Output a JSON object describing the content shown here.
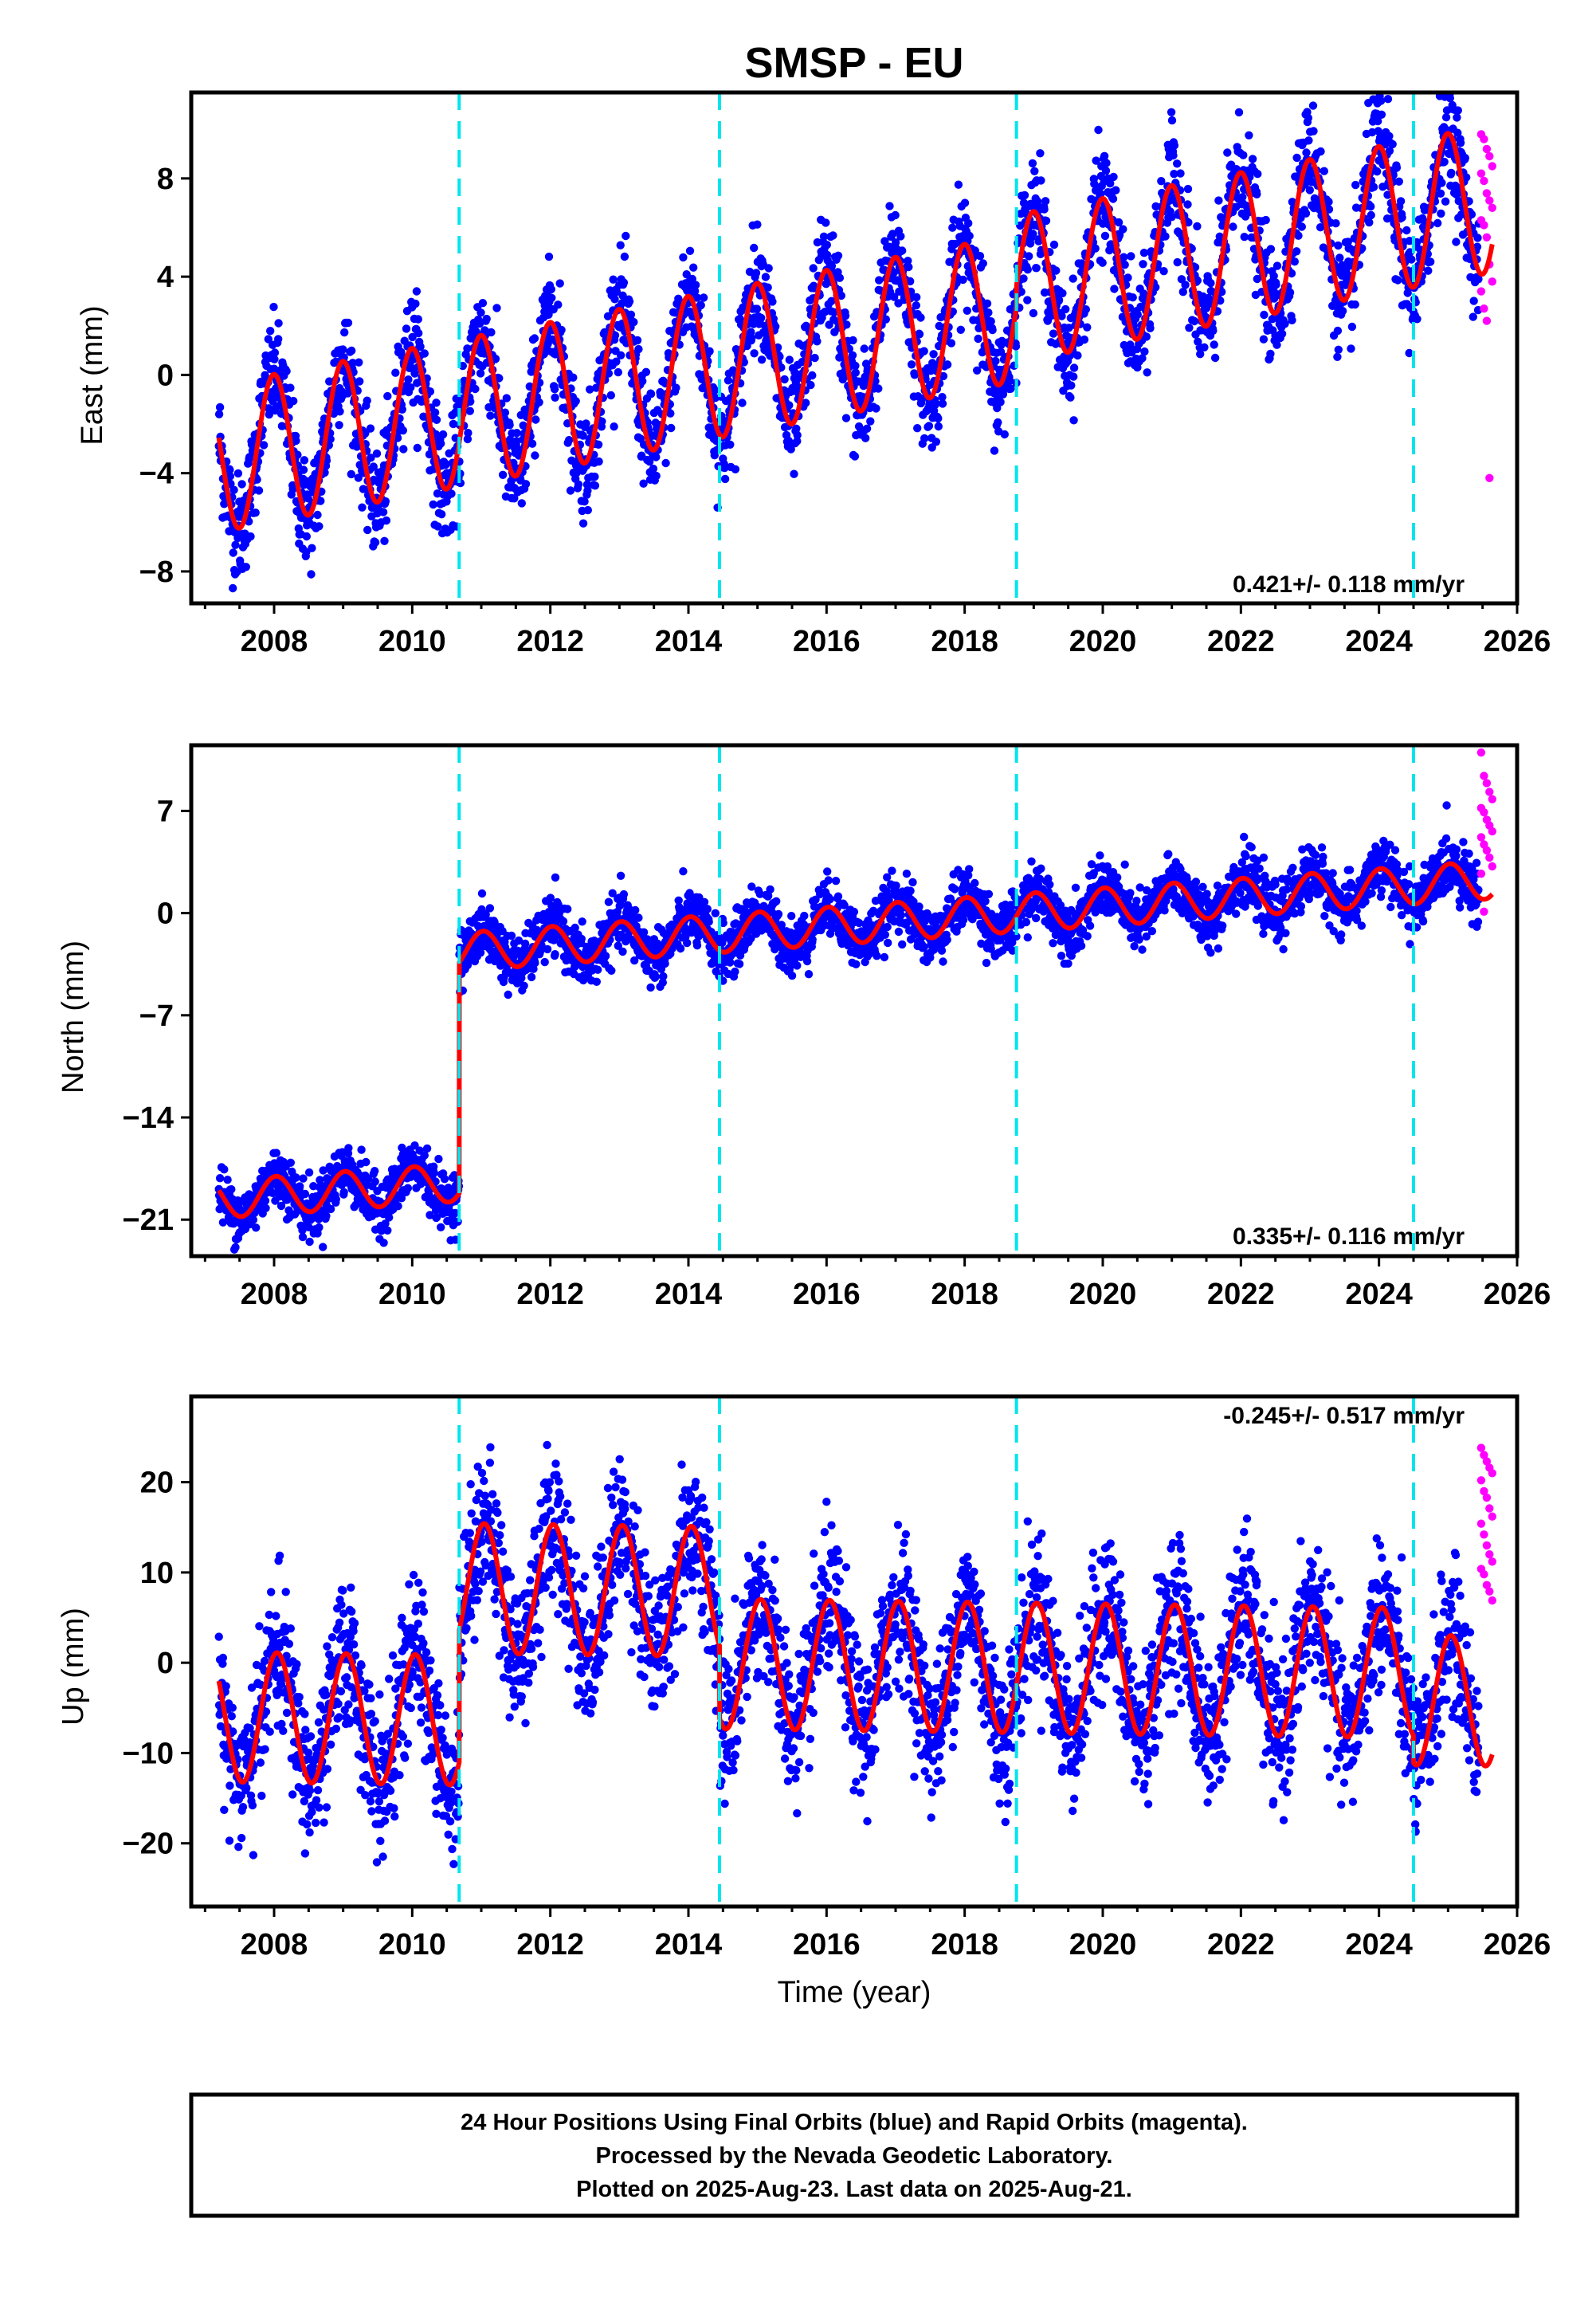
{
  "title": "SMSP - EU",
  "x_axis_label": "Time (year)",
  "caption": {
    "line1": "24 Hour Positions Using Final Orbits (blue) and Rapid Orbits (magenta).",
    "line2": "Processed by the Nevada Geodetic Laboratory.",
    "line3": "Plotted on 2025-Aug-23. Last data on 2025-Aug-21."
  },
  "colors": {
    "final_orbits": "#0000ff",
    "rapid_orbits": "#ff00ff",
    "model_fit": "#ff0000",
    "antenna_change_lines": "#00e5ee",
    "frame": "#000000"
  },
  "chart_data": [
    {
      "type": "scatter",
      "panel": "East",
      "ylabel": "East (mm)",
      "xlim": [
        2006.8,
        2026.0
      ],
      "ylim": [
        -9.3,
        11.5
      ],
      "xticks": [
        "2008",
        "2010",
        "2012",
        "2014",
        "2016",
        "2018",
        "2020",
        "2022",
        "2024",
        "2026"
      ],
      "yticks": [
        "8",
        "4",
        "0",
        "-4",
        "-8"
      ],
      "grid": false,
      "rate_label": "0.421+/- 0.118 mm/yr",
      "data_start": 2007.2,
      "final_end": 2025.45,
      "rapid_range": [
        2025.48,
        2025.64
      ],
      "dashed_vertical_lines": [
        2010.68,
        2014.45,
        2018.75,
        2024.5
      ],
      "model": {
        "offset": -3.4,
        "trend": 0.53,
        "annual_amp": 3.0,
        "phase": 1.6,
        "steps": [
          {
            "t": 2018.75,
            "dy": 0.8
          }
        ]
      },
      "noise_sd": 1.1,
      "rapid_values": [
        9.8,
        9.6,
        9.2,
        8.9,
        8.5,
        8.2,
        7.9,
        7.4,
        7.1,
        6.8,
        6.3,
        6.1,
        5.6,
        4.5,
        3.8,
        3.4,
        2.7,
        2.2,
        -4.2
      ]
    },
    {
      "type": "scatter",
      "panel": "North",
      "ylabel": "North (mm)",
      "xlim": [
        2006.8,
        2026.0
      ],
      "ylim": [
        -23.5,
        11.5
      ],
      "xticks": [
        "2008",
        "2010",
        "2012",
        "2014",
        "2016",
        "2018",
        "2020",
        "2022",
        "2024",
        "2026"
      ],
      "yticks": [
        "7",
        "0",
        "-7",
        "-14",
        "-21"
      ],
      "grid": false,
      "rate_label": "0.335+/- 0.116 mm/yr",
      "data_start": 2007.2,
      "final_end": 2025.45,
      "rapid_range": [
        2025.48,
        2025.64
      ],
      "dashed_vertical_lines": [
        2010.68,
        2014.45,
        2018.75,
        2024.5
      ],
      "model": {
        "offset": -19.6,
        "trend": 0.33,
        "annual_amp": 1.3,
        "phase": 1.4,
        "steps": [
          {
            "t": 2010.68,
            "dy": 15.8
          }
        ]
      },
      "noise_sd": 0.95,
      "rapid_values": [
        11.0,
        9.4,
        8.9,
        8.3,
        7.8,
        7.2,
        6.9,
        6.4,
        6.0,
        5.6,
        5.2,
        4.7,
        4.3,
        3.8,
        3.2,
        2.7,
        0.1
      ]
    },
    {
      "type": "scatter",
      "panel": "Up",
      "ylabel": "Up (mm)",
      "xlim": [
        2006.8,
        2026.0
      ],
      "ylim": [
        -27.0,
        29.5
      ],
      "xticks": [
        "2008",
        "2010",
        "2012",
        "2014",
        "2016",
        "2018",
        "2020",
        "2022",
        "2024",
        "2026"
      ],
      "yticks": [
        "20",
        "10",
        "0",
        "-10",
        "-20"
      ],
      "grid": false,
      "rate_label": "-0.245+/- 0.517 mm/yr",
      "data_start": 2007.2,
      "final_end": 2025.45,
      "rapid_range": [
        2025.48,
        2025.64
      ],
      "dashed_vertical_lines": [
        2010.68,
        2014.45,
        2018.75,
        2024.5
      ],
      "model": {
        "offset": -6.0,
        "trend": -0.1,
        "annual_amp": 7.2,
        "phase": 1.3,
        "steps": [
          {
            "t": 2010.68,
            "dy": 14.6
          },
          {
            "t": 2014.45,
            "dy": -8.0
          },
          {
            "t": 2024.5,
            "dy": -3.0
          }
        ]
      },
      "noise_sd": 4.0,
      "rapid_values": [
        23.8,
        23.0,
        22.3,
        21.6,
        21.0,
        20.2,
        19.0,
        18.3,
        17.1,
        16.2,
        15.4,
        14.2,
        13.0,
        12.0,
        11.2,
        10.4,
        9.8,
        8.6,
        7.9,
        6.9
      ]
    }
  ]
}
